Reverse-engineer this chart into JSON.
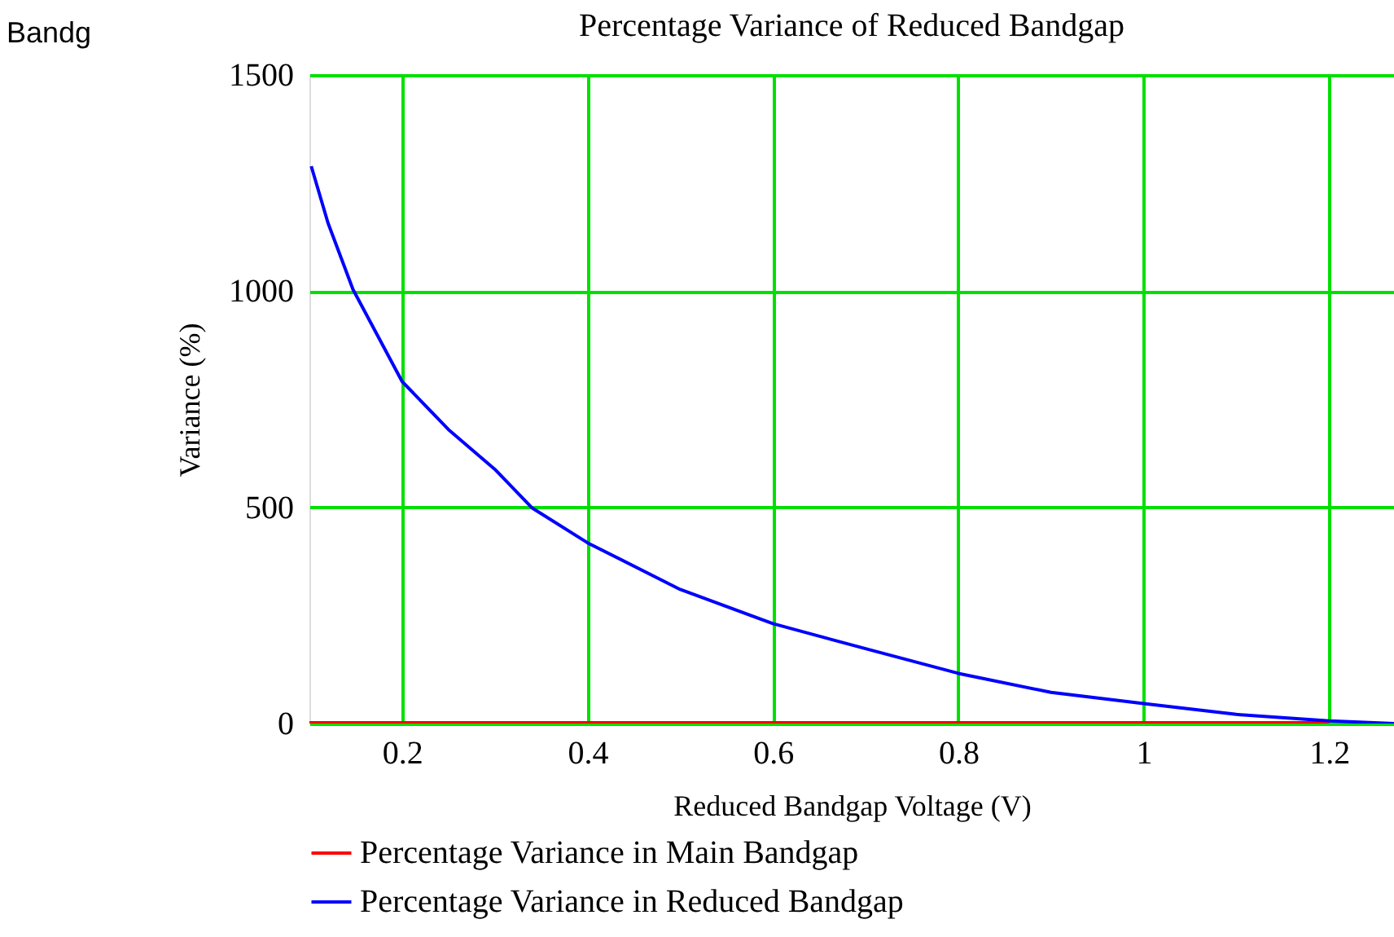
{
  "chart_data": {
    "type": "line",
    "title": "Percentage Variance of Reduced Bandgap",
    "xlabel": "Reduced Bandgap Voltage (V)",
    "ylabel": "Variance (%)",
    "annotations": [
      "Bandg"
    ],
    "series": [
      {
        "name": "Percentage Variance in Main Bandgap",
        "color": "#ff0000",
        "x": [
          0.1,
          1.2
        ],
        "values": [
          2,
          2
        ]
      },
      {
        "name": "Percentage Variance in Reduced Bandgap",
        "color": "#0000ff",
        "x": [
          0.102,
          0.12,
          0.147,
          0.2,
          0.25,
          0.3,
          0.34,
          0.4,
          0.5,
          0.6,
          0.7,
          0.8,
          0.9,
          1.0,
          1.1,
          1.2,
          1.27
        ],
        "values": [
          1289,
          1158,
          1004,
          791,
          680,
          588,
          499,
          418,
          310,
          231,
          173,
          116,
          72,
          46,
          21,
          6,
          0
        ]
      }
    ],
    "xlim": [
      0.1,
      1.27
    ],
    "xticks": [
      0.2,
      0.4,
      0.6,
      0.8,
      1,
      1.2
    ],
    "ylim": [
      0,
      1500
    ],
    "yticks": [
      0,
      500,
      1000,
      1500
    ],
    "grid": true,
    "legend": "bottom"
  }
}
